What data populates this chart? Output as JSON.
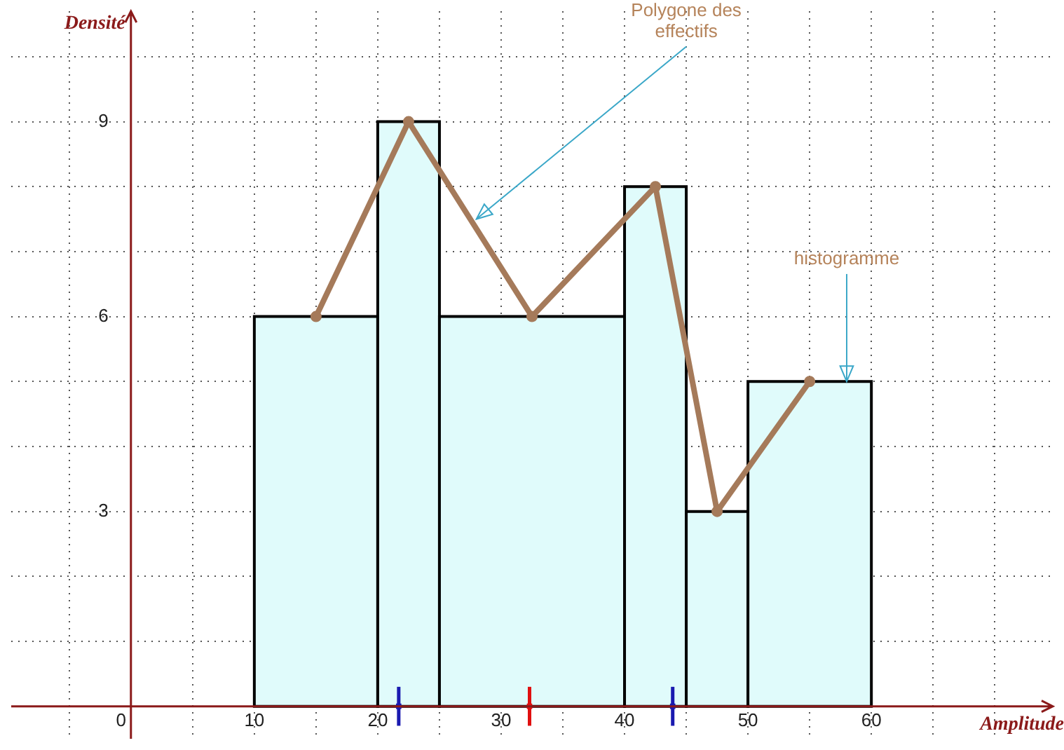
{
  "chart_data": {
    "type": "histogram",
    "xlabel": "Amplitude",
    "ylabel": "Densité",
    "bins": [
      10,
      20,
      25,
      40,
      45,
      50,
      60
    ],
    "values": [
      6,
      9,
      6,
      8,
      3,
      5
    ],
    "color": "#e0fbfb",
    "series": [
      {
        "type": "line",
        "color": "#a57a5a",
        "marker": "circle",
        "x": [
          15,
          22.5,
          32.5,
          42.5,
          47.5,
          55
        ],
        "values": [
          6,
          9,
          6,
          8,
          3,
          5
        ]
      },
      {
        "type": "scatter",
        "colors": [
          "#1a1ab0",
          "#e01010",
          "#1a1ab0"
        ],
        "marker": "square",
        "x": [
          21.7,
          32.3,
          43.9
        ],
        "values": [
          0,
          0,
          0
        ],
        "errors": [
          0.3,
          0.3,
          0.3
        ]
      }
    ],
    "xlim": [
      -9.7,
      74.7
    ],
    "ylim": [
      -0.5,
      10.7
    ],
    "xticks": [
      {
        "value": -5,
        "label": null
      },
      0,
      {
        "value": 5,
        "label": null
      },
      10,
      {
        "value": 15,
        "label": null
      },
      20,
      {
        "value": 25,
        "label": null
      },
      30,
      {
        "value": 35,
        "label": null
      },
      40,
      {
        "value": 45,
        "label": null
      },
      50,
      {
        "value": 55,
        "label": null
      },
      60,
      {
        "value": 65,
        "label": null
      },
      {
        "value": 70,
        "label": null
      }
    ],
    "yticks": [
      {
        "value": 1,
        "label": null
      },
      {
        "value": 2,
        "label": null
      },
      3,
      {
        "value": 4,
        "label": null
      },
      {
        "value": 5,
        "label": null
      },
      6,
      {
        "value": 7,
        "label": null
      },
      {
        "value": 8,
        "label": null
      },
      9,
      {
        "value": 10,
        "label": null
      }
    ],
    "grid": true,
    "legend": false,
    "annotations": [
      {
        "text": "Polygone des effectifs",
        "x": 28,
        "y": 7.5
      },
      {
        "text": "histogramme",
        "x": 58,
        "y": 5
      }
    ]
  }
}
